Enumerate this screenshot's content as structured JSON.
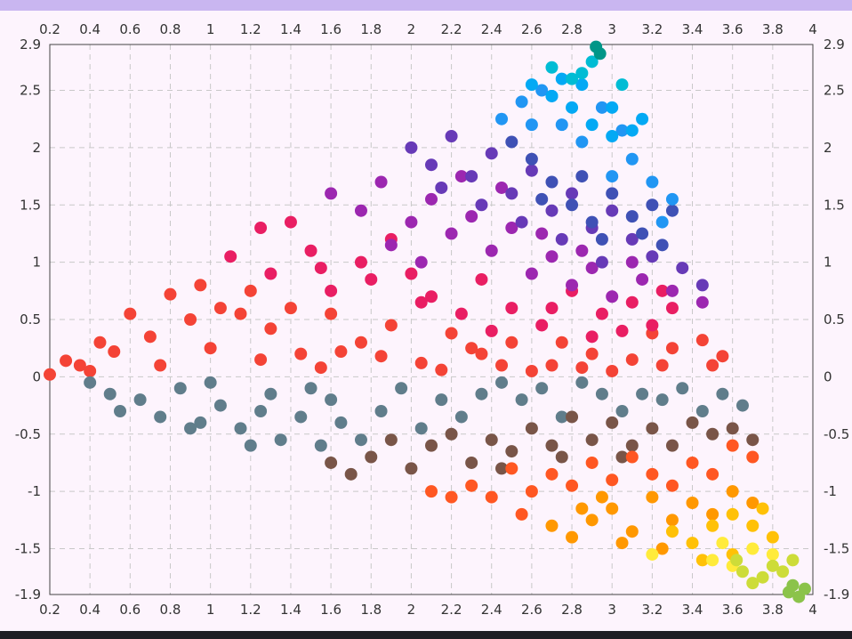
{
  "window": {
    "accent_color": "#c9b6f0",
    "background_color": "#fdf4fd",
    "bottom_bar_color": "#1e1d24"
  },
  "chart_data": {
    "type": "scatter",
    "title": "",
    "xlabel": "",
    "ylabel": "",
    "xlim": [
      0.2,
      4
    ],
    "ylim": [
      -1.9,
      2.9
    ],
    "grid": true,
    "x_ticks": [
      0.2,
      0.4,
      0.6,
      0.8,
      1,
      1.2,
      1.4,
      1.6,
      1.8,
      2,
      2.2,
      2.4,
      2.6,
      2.8,
      3,
      3.2,
      3.4,
      3.6,
      3.8,
      4
    ],
    "x_tick_labels": [
      "0.2",
      "0.4",
      "0.6",
      "0.8",
      "1",
      "1.2",
      "1.4",
      "1.6",
      "1.8",
      "2",
      "2.2",
      "2.4",
      "2.6",
      "2.8",
      "3",
      "3.2",
      "3.4",
      "3.6",
      "3.8",
      "4"
    ],
    "y_ticks": [
      2.9,
      2.5,
      2,
      1.5,
      1,
      0.5,
      0,
      -0.5,
      -1,
      -1.5,
      -1.9
    ],
    "y_tick_labels": [
      "2.9",
      "2.5",
      "2",
      "1.5",
      "1",
      "0.5",
      "0",
      "-0.5",
      "-1",
      "-1.5",
      "-1.9"
    ],
    "marker_size": 7,
    "series": [
      {
        "color": "#f44336",
        "points": [
          [
            0.2,
            0.02
          ],
          [
            0.28,
            0.14
          ],
          [
            0.35,
            0.1
          ],
          [
            0.45,
            0.3
          ],
          [
            0.52,
            0.22
          ],
          [
            0.6,
            0.55
          ],
          [
            0.7,
            0.35
          ],
          [
            0.8,
            0.72
          ],
          [
            0.9,
            0.5
          ],
          [
            1.05,
            0.6
          ],
          [
            1.2,
            0.75
          ],
          [
            1.3,
            0.42
          ],
          [
            1.45,
            0.2
          ],
          [
            1.6,
            0.55
          ],
          [
            1.75,
            0.3
          ],
          [
            1.9,
            0.45
          ],
          [
            2.05,
            0.12
          ],
          [
            2.2,
            0.38
          ],
          [
            2.35,
            0.2
          ],
          [
            2.5,
            0.3
          ],
          [
            2.7,
            0.1
          ],
          [
            2.9,
            0.2
          ],
          [
            3.1,
            0.15
          ],
          [
            3.3,
            0.25
          ],
          [
            3.5,
            0.1
          ],
          [
            0.4,
            0.05
          ],
          [
            0.75,
            0.1
          ],
          [
            1.0,
            0.25
          ],
          [
            1.25,
            0.15
          ],
          [
            1.55,
            0.08
          ],
          [
            1.85,
            0.18
          ],
          [
            2.15,
            0.06
          ],
          [
            2.45,
            0.1
          ],
          [
            2.75,
            0.3
          ],
          [
            3.0,
            0.05
          ],
          [
            3.2,
            0.38
          ],
          [
            3.45,
            0.32
          ],
          [
            3.55,
            0.18
          ],
          [
            0.95,
            0.8
          ],
          [
            1.15,
            0.55
          ],
          [
            1.4,
            0.6
          ],
          [
            1.65,
            0.22
          ],
          [
            2.3,
            0.25
          ],
          [
            2.6,
            0.05
          ],
          [
            2.85,
            0.08
          ],
          [
            3.25,
            0.1
          ]
        ]
      },
      {
        "color": "#e91e63",
        "points": [
          [
            1.1,
            1.05
          ],
          [
            1.25,
            1.3
          ],
          [
            1.4,
            1.35
          ],
          [
            1.5,
            1.1
          ],
          [
            1.6,
            0.75
          ],
          [
            1.75,
            1.0
          ],
          [
            1.9,
            1.2
          ],
          [
            2.0,
            0.9
          ],
          [
            2.1,
            0.7
          ],
          [
            2.25,
            0.55
          ],
          [
            2.35,
            0.85
          ],
          [
            2.5,
            0.6
          ],
          [
            2.65,
            0.45
          ],
          [
            2.8,
            0.75
          ],
          [
            2.95,
            0.55
          ],
          [
            3.1,
            0.65
          ],
          [
            3.2,
            0.45
          ],
          [
            3.3,
            0.6
          ],
          [
            1.3,
            0.9
          ],
          [
            1.55,
            0.95
          ],
          [
            1.8,
            0.85
          ],
          [
            2.05,
            0.65
          ],
          [
            2.4,
            0.4
          ],
          [
            2.7,
            0.6
          ],
          [
            2.9,
            0.35
          ],
          [
            3.05,
            0.4
          ],
          [
            3.25,
            0.75
          ]
        ]
      },
      {
        "color": "#9c27b0",
        "points": [
          [
            1.6,
            1.6
          ],
          [
            1.75,
            1.45
          ],
          [
            1.85,
            1.7
          ],
          [
            2.0,
            1.35
          ],
          [
            2.1,
            1.55
          ],
          [
            2.2,
            1.25
          ],
          [
            2.3,
            1.4
          ],
          [
            2.4,
            1.1
          ],
          [
            2.5,
            1.3
          ],
          [
            2.6,
            0.9
          ],
          [
            2.7,
            1.05
          ],
          [
            2.8,
            0.8
          ],
          [
            2.9,
            0.95
          ],
          [
            3.0,
            0.7
          ],
          [
            3.15,
            0.85
          ],
          [
            3.3,
            0.75
          ],
          [
            3.45,
            0.65
          ],
          [
            1.9,
            1.15
          ],
          [
            2.05,
            1.0
          ],
          [
            2.25,
            1.75
          ],
          [
            2.45,
            1.65
          ],
          [
            2.65,
            1.25
          ],
          [
            2.85,
            1.1
          ],
          [
            3.1,
            1.0
          ]
        ]
      },
      {
        "color": "#673ab7",
        "points": [
          [
            2.0,
            2.0
          ],
          [
            2.1,
            1.85
          ],
          [
            2.2,
            2.1
          ],
          [
            2.3,
            1.75
          ],
          [
            2.4,
            1.95
          ],
          [
            2.5,
            1.6
          ],
          [
            2.6,
            1.8
          ],
          [
            2.7,
            1.45
          ],
          [
            2.8,
            1.6
          ],
          [
            2.9,
            1.3
          ],
          [
            3.0,
            1.45
          ],
          [
            3.1,
            1.2
          ],
          [
            3.2,
            1.05
          ],
          [
            3.35,
            0.95
          ],
          [
            3.45,
            0.8
          ],
          [
            2.15,
            1.65
          ],
          [
            2.35,
            1.5
          ],
          [
            2.55,
            1.35
          ],
          [
            2.75,
            1.2
          ],
          [
            2.95,
            1.0
          ]
        ]
      },
      {
        "color": "#3f51b5",
        "points": [
          [
            2.5,
            2.05
          ],
          [
            2.6,
            1.9
          ],
          [
            2.7,
            1.7
          ],
          [
            2.8,
            1.5
          ],
          [
            2.9,
            1.35
          ],
          [
            3.0,
            1.6
          ],
          [
            3.1,
            1.4
          ],
          [
            3.2,
            1.5
          ],
          [
            3.3,
            1.45
          ],
          [
            3.15,
            1.25
          ],
          [
            2.95,
            1.2
          ],
          [
            3.25,
            1.15
          ],
          [
            2.65,
            1.55
          ],
          [
            2.85,
            1.75
          ]
        ]
      },
      {
        "color": "#2196f3",
        "points": [
          [
            2.45,
            2.25
          ],
          [
            2.55,
            2.4
          ],
          [
            2.65,
            2.5
          ],
          [
            2.75,
            2.2
          ],
          [
            2.85,
            2.05
          ],
          [
            2.95,
            2.35
          ],
          [
            3.05,
            2.15
          ],
          [
            3.1,
            1.9
          ],
          [
            3.2,
            1.7
          ],
          [
            3.3,
            1.55
          ],
          [
            3.25,
            1.35
          ],
          [
            3.0,
            1.75
          ],
          [
            2.7,
            2.45
          ],
          [
            2.6,
            2.2
          ]
        ]
      },
      {
        "color": "#03a9f4",
        "points": [
          [
            2.6,
            2.55
          ],
          [
            2.7,
            2.45
          ],
          [
            2.8,
            2.35
          ],
          [
            2.9,
            2.2
          ],
          [
            3.0,
            2.35
          ],
          [
            3.1,
            2.15
          ],
          [
            3.15,
            2.25
          ],
          [
            2.85,
            2.55
          ],
          [
            3.0,
            2.1
          ],
          [
            2.75,
            2.6
          ]
        ]
      },
      {
        "color": "#00bcd4",
        "points": [
          [
            2.7,
            2.7
          ],
          [
            2.8,
            2.6
          ],
          [
            2.9,
            2.75
          ],
          [
            2.85,
            2.65
          ],
          [
            3.05,
            2.55
          ]
        ]
      },
      {
        "color": "#009688",
        "points": [
          [
            2.92,
            2.88
          ],
          [
            2.94,
            2.82
          ]
        ]
      },
      {
        "color": "#607d8b",
        "points": [
          [
            0.4,
            -0.05
          ],
          [
            0.5,
            -0.15
          ],
          [
            0.55,
            -0.3
          ],
          [
            0.65,
            -0.2
          ],
          [
            0.75,
            -0.35
          ],
          [
            0.85,
            -0.1
          ],
          [
            0.95,
            -0.4
          ],
          [
            1.05,
            -0.25
          ],
          [
            1.15,
            -0.45
          ],
          [
            1.25,
            -0.3
          ],
          [
            1.35,
            -0.55
          ],
          [
            1.45,
            -0.35
          ],
          [
            1.55,
            -0.6
          ],
          [
            1.65,
            -0.4
          ],
          [
            1.75,
            -0.55
          ],
          [
            1.85,
            -0.3
          ],
          [
            1.95,
            -0.1
          ],
          [
            2.05,
            -0.45
          ],
          [
            2.15,
            -0.2
          ],
          [
            2.25,
            -0.35
          ],
          [
            2.35,
            -0.15
          ],
          [
            2.45,
            -0.05
          ],
          [
            2.55,
            -0.2
          ],
          [
            2.65,
            -0.1
          ],
          [
            2.75,
            -0.35
          ],
          [
            2.85,
            -0.05
          ],
          [
            2.95,
            -0.15
          ],
          [
            3.05,
            -0.3
          ],
          [
            3.15,
            -0.15
          ],
          [
            3.25,
            -0.2
          ],
          [
            3.35,
            -0.1
          ],
          [
            3.45,
            -0.3
          ],
          [
            3.55,
            -0.15
          ],
          [
            3.65,
            -0.25
          ],
          [
            1.0,
            -0.05
          ],
          [
            1.3,
            -0.15
          ],
          [
            1.6,
            -0.2
          ],
          [
            0.9,
            -0.45
          ],
          [
            1.2,
            -0.6
          ],
          [
            1.5,
            -0.1
          ]
        ]
      },
      {
        "color": "#795548",
        "points": [
          [
            1.6,
            -0.75
          ],
          [
            1.7,
            -0.85
          ],
          [
            1.8,
            -0.7
          ],
          [
            1.9,
            -0.55
          ],
          [
            2.0,
            -0.8
          ],
          [
            2.1,
            -0.6
          ],
          [
            2.2,
            -0.5
          ],
          [
            2.3,
            -0.75
          ],
          [
            2.4,
            -0.55
          ],
          [
            2.5,
            -0.65
          ],
          [
            2.6,
            -0.45
          ],
          [
            2.7,
            -0.6
          ],
          [
            2.8,
            -0.35
          ],
          [
            2.9,
            -0.55
          ],
          [
            3.0,
            -0.4
          ],
          [
            3.1,
            -0.6
          ],
          [
            3.2,
            -0.45
          ],
          [
            3.3,
            -0.6
          ],
          [
            3.4,
            -0.4
          ],
          [
            3.5,
            -0.5
          ],
          [
            3.6,
            -0.45
          ],
          [
            3.7,
            -0.55
          ],
          [
            2.45,
            -0.8
          ],
          [
            2.75,
            -0.7
          ],
          [
            3.05,
            -0.7
          ]
        ]
      },
      {
        "color": "#ff5722",
        "points": [
          [
            2.1,
            -1.0
          ],
          [
            2.3,
            -0.95
          ],
          [
            2.4,
            -1.05
          ],
          [
            2.5,
            -0.8
          ],
          [
            2.6,
            -1.0
          ],
          [
            2.7,
            -0.85
          ],
          [
            2.8,
            -0.95
          ],
          [
            2.9,
            -0.75
          ],
          [
            3.0,
            -0.9
          ],
          [
            3.1,
            -0.7
          ],
          [
            3.2,
            -0.85
          ],
          [
            3.3,
            -0.95
          ],
          [
            3.4,
            -0.75
          ],
          [
            3.5,
            -0.85
          ],
          [
            3.6,
            -0.6
          ],
          [
            3.7,
            -0.7
          ],
          [
            2.55,
            -1.2
          ],
          [
            2.2,
            -1.05
          ]
        ]
      },
      {
        "color": "#ff9800",
        "points": [
          [
            2.7,
            -1.3
          ],
          [
            2.8,
            -1.4
          ],
          [
            2.9,
            -1.25
          ],
          [
            3.0,
            -1.15
          ],
          [
            3.1,
            -1.35
          ],
          [
            3.2,
            -1.05
          ],
          [
            3.3,
            -1.25
          ],
          [
            3.4,
            -1.1
          ],
          [
            3.5,
            -1.2
          ],
          [
            3.6,
            -1.0
          ],
          [
            3.7,
            -1.1
          ],
          [
            2.85,
            -1.15
          ],
          [
            3.05,
            -1.45
          ],
          [
            3.25,
            -1.5
          ],
          [
            2.95,
            -1.05
          ]
        ]
      },
      {
        "color": "#ffc107",
        "points": [
          [
            3.3,
            -1.35
          ],
          [
            3.4,
            -1.45
          ],
          [
            3.5,
            -1.3
          ],
          [
            3.6,
            -1.2
          ],
          [
            3.7,
            -1.3
          ],
          [
            3.75,
            -1.15
          ],
          [
            3.8,
            -1.4
          ],
          [
            3.45,
            -1.6
          ],
          [
            3.6,
            -1.55
          ]
        ]
      },
      {
        "color": "#ffeb3b",
        "points": [
          [
            3.2,
            -1.55
          ],
          [
            3.5,
            -1.6
          ],
          [
            3.6,
            -1.65
          ],
          [
            3.7,
            -1.5
          ],
          [
            3.55,
            -1.45
          ],
          [
            3.8,
            -1.55
          ]
        ]
      },
      {
        "color": "#cddc39",
        "points": [
          [
            3.65,
            -1.7
          ],
          [
            3.75,
            -1.75
          ],
          [
            3.8,
            -1.65
          ],
          [
            3.7,
            -1.8
          ],
          [
            3.85,
            -1.7
          ],
          [
            3.9,
            -1.6
          ],
          [
            3.62,
            -1.6
          ]
        ]
      },
      {
        "color": "#8bc34a",
        "points": [
          [
            3.88,
            -1.88
          ],
          [
            3.93,
            -1.92
          ],
          [
            3.96,
            -1.85
          ],
          [
            3.9,
            -1.82
          ]
        ]
      }
    ]
  }
}
